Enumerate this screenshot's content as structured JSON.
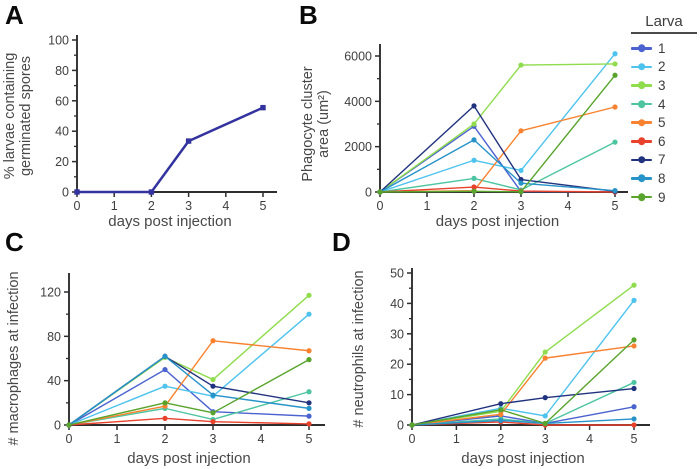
{
  "legend": {
    "title": "Larva",
    "items": [
      {
        "label": "1",
        "color": "#4b63cf"
      },
      {
        "label": "2",
        "color": "#4ec3ee"
      },
      {
        "label": "3",
        "color": "#8fdc4d"
      },
      {
        "label": "4",
        "color": "#4ec5a1"
      },
      {
        "label": "5",
        "color": "#f8822f"
      },
      {
        "label": "6",
        "color": "#e8422c"
      },
      {
        "label": "7",
        "color": "#21337e"
      },
      {
        "label": "8",
        "color": "#2793c9"
      },
      {
        "label": "9",
        "color": "#58a42c"
      }
    ]
  },
  "chart_data": [
    {
      "panel": "A",
      "type": "line",
      "x": [
        0,
        2,
        3,
        5
      ],
      "xlabel": "days post injection",
      "ylabel_lines": [
        "% larvae containing",
        "germinated spores"
      ],
      "xlim": [
        0,
        5
      ],
      "ylim": [
        0,
        100
      ],
      "xticks": [
        0,
        1,
        2,
        3,
        4,
        5
      ],
      "yticks": [
        0,
        20,
        40,
        60,
        80,
        100
      ],
      "yminor_step": 10,
      "series": [
        {
          "name": "percent larvae germinated",
          "color": "#32339f",
          "values": [
            0,
            0,
            33.5,
            55.5
          ]
        }
      ]
    },
    {
      "panel": "B",
      "type": "line",
      "x": [
        0,
        2,
        3,
        5
      ],
      "xlabel": "days post injection",
      "ylabel_lines": [
        "Phagocyte cluster",
        "area (um²)"
      ],
      "xlim": [
        0,
        5
      ],
      "ylim": [
        0,
        6000
      ],
      "xticks": [
        0,
        1,
        2,
        3,
        4,
        5
      ],
      "yticks": [
        0,
        2000,
        4000,
        6000
      ],
      "yminor_step": 1000,
      "series": [
        {
          "name": "Larva 1",
          "color": "#4b63cf",
          "values": [
            0,
            2900,
            20,
            10
          ]
        },
        {
          "name": "Larva 2",
          "color": "#4ec3ee",
          "values": [
            0,
            1400,
            950,
            6100
          ]
        },
        {
          "name": "Larva 3",
          "color": "#8fdc4d",
          "values": [
            0,
            3000,
            5600,
            5650
          ]
        },
        {
          "name": "Larva 4",
          "color": "#4ec5a1",
          "values": [
            0,
            600,
            90,
            2200
          ]
        },
        {
          "name": "Larva 5",
          "color": "#f8822f",
          "values": [
            0,
            60,
            2700,
            3750
          ]
        },
        {
          "name": "Larva 6",
          "color": "#e8422c",
          "values": [
            0,
            220,
            40,
            0
          ]
        },
        {
          "name": "Larva 7",
          "color": "#21337e",
          "values": [
            0,
            3800,
            550,
            30
          ]
        },
        {
          "name": "Larva 8",
          "color": "#2793c9",
          "values": [
            0,
            2300,
            390,
            60
          ]
        },
        {
          "name": "Larva 9",
          "color": "#58a42c",
          "values": [
            0,
            30,
            10,
            5150
          ]
        }
      ]
    },
    {
      "panel": "C",
      "type": "line",
      "x": [
        0,
        2,
        3,
        5
      ],
      "xlabel": "days post injection",
      "ylabel_lines": [
        "# macrophages at infection"
      ],
      "xlim": [
        0,
        5
      ],
      "ylim": [
        0,
        120
      ],
      "xticks": [
        0,
        1,
        2,
        3,
        4,
        5
      ],
      "yticks": [
        0,
        40,
        80,
        120
      ],
      "yminor_step": 20,
      "series": [
        {
          "name": "Larva 1",
          "color": "#4b63cf",
          "values": [
            0,
            50,
            12,
            8
          ]
        },
        {
          "name": "Larva 2",
          "color": "#4ec3ee",
          "values": [
            0,
            35,
            26,
            100
          ]
        },
        {
          "name": "Larva 3",
          "color": "#8fdc4d",
          "values": [
            0,
            61,
            41,
            117
          ]
        },
        {
          "name": "Larva 4",
          "color": "#4ec5a1",
          "values": [
            0,
            15,
            5,
            30
          ]
        },
        {
          "name": "Larva 5",
          "color": "#f8822f",
          "values": [
            0,
            17,
            76,
            67
          ]
        },
        {
          "name": "Larva 6",
          "color": "#e8422c",
          "values": [
            0,
            6,
            3,
            1
          ]
        },
        {
          "name": "Larva 7",
          "color": "#21337e",
          "values": [
            0,
            62,
            35,
            20
          ]
        },
        {
          "name": "Larva 8",
          "color": "#2793c9",
          "values": [
            0,
            62,
            27,
            15
          ]
        },
        {
          "name": "Larva 9",
          "color": "#58a42c",
          "values": [
            0,
            20,
            11,
            59
          ]
        }
      ]
    },
    {
      "panel": "D",
      "type": "line",
      "x": [
        0,
        2,
        3,
        5
      ],
      "xlabel": "days post injection",
      "ylabel_lines": [
        "# neutrophils at infection"
      ],
      "xlim": [
        0,
        5
      ],
      "ylim": [
        0,
        50
      ],
      "xticks": [
        0,
        1,
        2,
        3,
        4,
        5
      ],
      "yticks": [
        0,
        10,
        20,
        30,
        40,
        50
      ],
      "yminor_step": 5,
      "series": [
        {
          "name": "Larva 1",
          "color": "#4b63cf",
          "values": [
            0,
            3,
            0.5,
            6
          ]
        },
        {
          "name": "Larva 2",
          "color": "#4ec3ee",
          "values": [
            0,
            5.5,
            3,
            41
          ]
        },
        {
          "name": "Larva 3",
          "color": "#8fdc4d",
          "values": [
            0,
            4.5,
            24,
            46
          ]
        },
        {
          "name": "Larva 4",
          "color": "#4ec5a1",
          "values": [
            0,
            2,
            0.5,
            14
          ]
        },
        {
          "name": "Larva 5",
          "color": "#f8822f",
          "values": [
            0,
            3.5,
            22,
            26
          ]
        },
        {
          "name": "Larva 6",
          "color": "#e8422c",
          "values": [
            0,
            1,
            0,
            0
          ]
        },
        {
          "name": "Larva 7",
          "color": "#21337e",
          "values": [
            0,
            7,
            9,
            12
          ]
        },
        {
          "name": "Larva 8",
          "color": "#2793c9",
          "values": [
            0,
            1.5,
            0.5,
            2
          ]
        },
        {
          "name": "Larva 9",
          "color": "#58a42c",
          "values": [
            0,
            5,
            0.5,
            28
          ]
        }
      ]
    }
  ]
}
